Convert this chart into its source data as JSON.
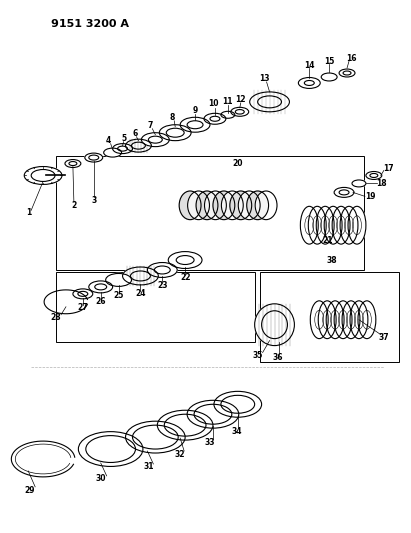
{
  "title": "9151 3200 A",
  "bg_color": "#ffffff",
  "line_color": "#000000",
  "figsize": [
    4.11,
    5.33
  ],
  "dpi": 100
}
